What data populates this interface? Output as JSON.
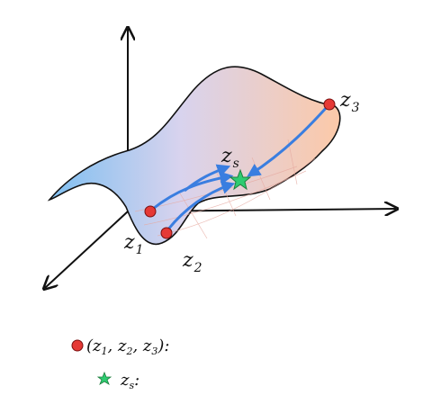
{
  "points": {
    "z1": {
      "main": "z",
      "sub": "1"
    },
    "z2": {
      "main": "z",
      "sub": "2"
    },
    "z3": {
      "main": "z",
      "sub": "3"
    },
    "zs": {
      "main": "z",
      "sub": "s"
    }
  },
  "legend": {
    "dots_open": "(",
    "z1_main": "z",
    "z1_sub": "1",
    "sep1": ", ",
    "z2_main": "z",
    "z2_sub": "2",
    "sep2": ", ",
    "z3_main": "z",
    "z3_sub": "3",
    "dots_close": "):",
    "star_main": "z",
    "star_sub": "s",
    "star_close": ":"
  },
  "colors": {
    "surface_left": "#8ec6ef",
    "surface_right": "#fbcfb2",
    "arrow": "#3a7ee0",
    "dot": "#e53935",
    "star": "#2ecc71",
    "axis": "#111111"
  }
}
